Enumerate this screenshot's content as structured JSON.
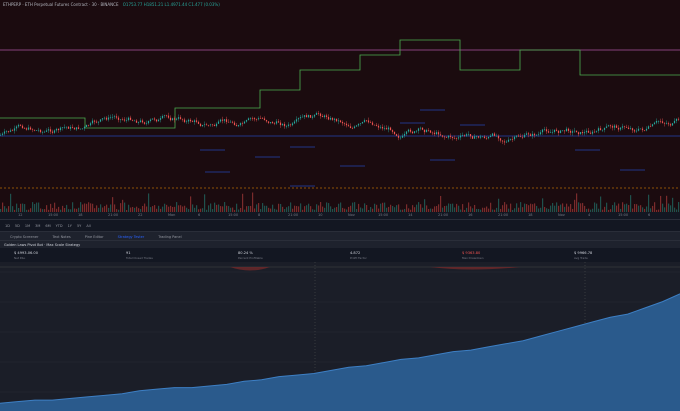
{
  "header": {
    "symbol": "ETHPERP · ETH Perpetual Futures Contract · 30 · BINANCE",
    "ohlc": "O1753.77 H1851.21 L1.4971.44 C1.477 (0.03%)",
    "status_color": "#26a69a"
  },
  "chart": {
    "bg": "#1b0b0f",
    "candle_up": "#26a69a",
    "candle_down": "#ef5350",
    "red_line": "#e53935",
    "blue_line": "#2962ff",
    "green_line": "#4caf50",
    "price_note_color": "#ffffff"
  },
  "time_axis": {
    "labels": [
      "12",
      "15:00",
      "18",
      "21:00",
      "22",
      "Mon",
      "6",
      "15:00",
      "8",
      "21:00",
      "10",
      "Nov",
      "15:00",
      "14",
      "21:00",
      "16",
      "21:00",
      "18",
      "Nov",
      "4",
      "15:00",
      "6"
    ]
  },
  "toolbar": {
    "items": [
      "1D",
      "5D",
      "1M",
      "3M",
      "6M",
      "YTD",
      "1Y",
      "5Y",
      "All"
    ]
  },
  "tabs": [
    {
      "label": "Crypto Screener",
      "active": false
    },
    {
      "label": "Text Notes",
      "active": false
    },
    {
      "label": "Pine Editor",
      "active": false
    },
    {
      "label": "Strategy Tester",
      "active": true
    },
    {
      "label": "Trading Panel",
      "active": false
    }
  ],
  "strategy": {
    "name": "Golden Laws Pivot Bot · Max Scale Strategy"
  },
  "metrics": [
    {
      "value": "$ 4993.06.00",
      "sub": "Net P&L"
    },
    {
      "value": "91",
      "sub": "Total Closed Trades"
    },
    {
      "value": "80.24 %",
      "sub": "Percent Profitable"
    },
    {
      "value": "4.872",
      "sub": "Profit Factor"
    },
    {
      "value": "$ 9363.80",
      "sub": "Max Drawdown",
      "color": "#ef5350"
    },
    {
      "value": "$ 9966.78",
      "sub": "Avg Trade"
    }
  ],
  "equity": {
    "fill": "#2a5a8c",
    "line": "#3d7fc4",
    "bg": "#1b1e28",
    "values": [
      5,
      6,
      7,
      7,
      8,
      9,
      10,
      11,
      13,
      14,
      15,
      15,
      16,
      17,
      19,
      20,
      22,
      23,
      24,
      26,
      28,
      29,
      31,
      33,
      34,
      36,
      38,
      39,
      41,
      43,
      45,
      48,
      51,
      54,
      57,
      60,
      62,
      66,
      70,
      75
    ]
  }
}
